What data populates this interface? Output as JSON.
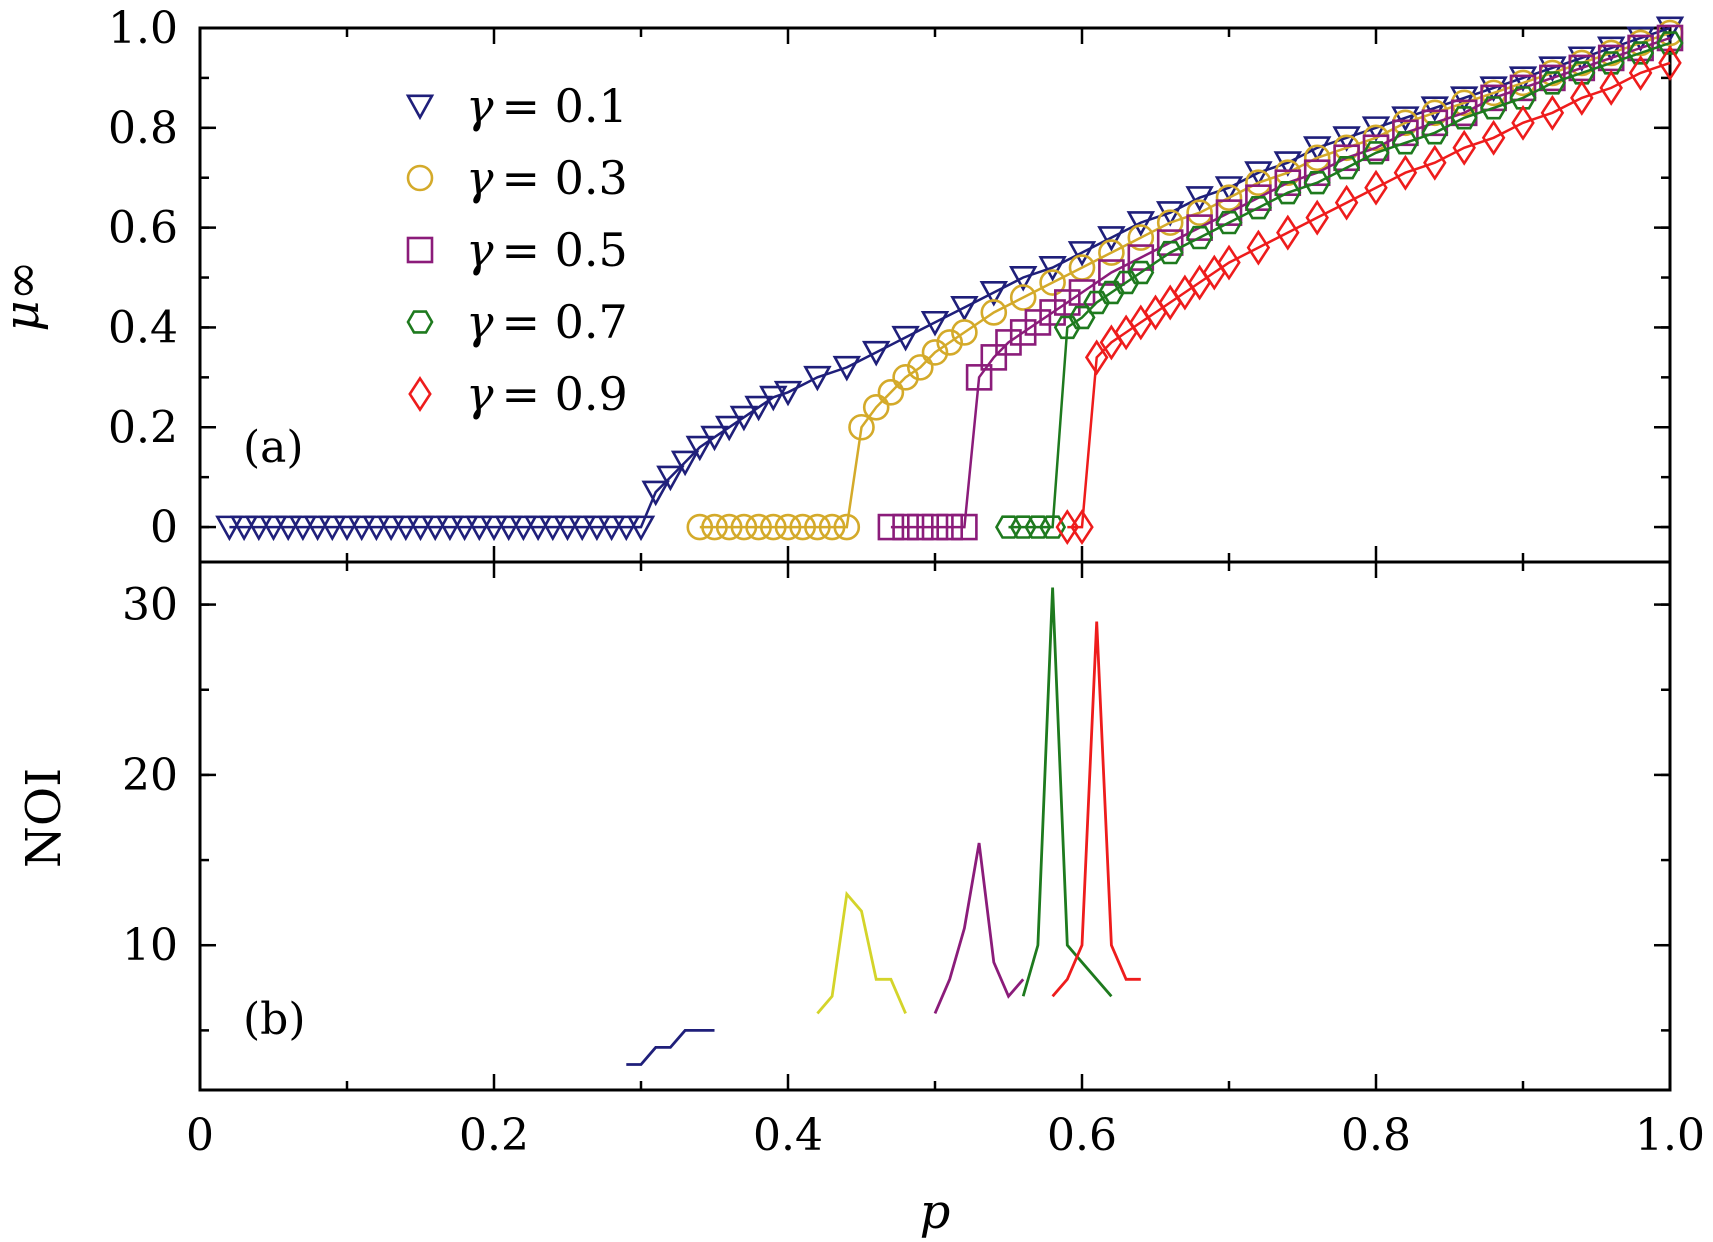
{
  "chart_data": [
    {
      "type": "line",
      "panel_label": "(a)",
      "xlabel": "p",
      "ylabel": "μ∞",
      "xlim": [
        0,
        1.0
      ],
      "ylim": [
        -0.07,
        1.0
      ],
      "x_ticks": [
        "0",
        "0.2",
        "0.4",
        "0.6",
        "0.8",
        "1.0"
      ],
      "y_ticks": [
        "0",
        "0.2",
        "0.4",
        "0.6",
        "0.8",
        "1.0"
      ],
      "legend_position": "top-left",
      "series": [
        {
          "name": "γ = 0.1",
          "marker": "triangle-down",
          "color": "#1f1f7a",
          "x": [
            0.02,
            0.03,
            0.04,
            0.05,
            0.06,
            0.07,
            0.08,
            0.09,
            0.1,
            0.11,
            0.12,
            0.13,
            0.14,
            0.15,
            0.16,
            0.17,
            0.18,
            0.19,
            0.2,
            0.21,
            0.22,
            0.23,
            0.24,
            0.25,
            0.26,
            0.27,
            0.28,
            0.29,
            0.3,
            0.31,
            0.32,
            0.33,
            0.34,
            0.35,
            0.36,
            0.37,
            0.38,
            0.39,
            0.4,
            0.42,
            0.44,
            0.46,
            0.48,
            0.5,
            0.52,
            0.54,
            0.56,
            0.58,
            0.6,
            0.62,
            0.64,
            0.66,
            0.68,
            0.7,
            0.72,
            0.74,
            0.76,
            0.78,
            0.8,
            0.82,
            0.84,
            0.86,
            0.88,
            0.9,
            0.92,
            0.94,
            0.96,
            0.98,
            1.0
          ],
          "y": [
            0,
            0,
            0,
            0,
            0,
            0,
            0,
            0,
            0,
            0,
            0,
            0,
            0,
            0,
            0,
            0,
            0,
            0,
            0,
            0,
            0,
            0,
            0,
            0,
            0,
            0,
            0,
            0,
            0,
            0.07,
            0.1,
            0.13,
            0.16,
            0.18,
            0.2,
            0.22,
            0.24,
            0.26,
            0.27,
            0.3,
            0.32,
            0.35,
            0.38,
            0.41,
            0.44,
            0.47,
            0.5,
            0.52,
            0.55,
            0.58,
            0.61,
            0.63,
            0.66,
            0.68,
            0.71,
            0.73,
            0.76,
            0.78,
            0.8,
            0.82,
            0.84,
            0.86,
            0.88,
            0.9,
            0.92,
            0.94,
            0.96,
            0.98,
            1.0
          ]
        },
        {
          "name": "γ = 0.3",
          "marker": "circle",
          "color": "#d4aa2a",
          "x": [
            0.34,
            0.35,
            0.36,
            0.37,
            0.38,
            0.39,
            0.4,
            0.41,
            0.42,
            0.43,
            0.44,
            0.45,
            0.46,
            0.47,
            0.48,
            0.49,
            0.5,
            0.51,
            0.52,
            0.54,
            0.56,
            0.58,
            0.6,
            0.62,
            0.64,
            0.66,
            0.68,
            0.7,
            0.72,
            0.74,
            0.76,
            0.78,
            0.8,
            0.82,
            0.84,
            0.86,
            0.88,
            0.9,
            0.92,
            0.94,
            0.96,
            0.98,
            1.0
          ],
          "y": [
            0,
            0,
            0,
            0,
            0,
            0,
            0,
            0,
            0,
            0,
            0,
            0.2,
            0.24,
            0.27,
            0.3,
            0.32,
            0.35,
            0.37,
            0.39,
            0.43,
            0.46,
            0.49,
            0.52,
            0.55,
            0.58,
            0.61,
            0.63,
            0.66,
            0.69,
            0.71,
            0.74,
            0.76,
            0.78,
            0.81,
            0.83,
            0.85,
            0.87,
            0.89,
            0.91,
            0.93,
            0.95,
            0.97,
            0.99
          ]
        },
        {
          "name": "γ = 0.5",
          "marker": "square",
          "color": "#8b1c7a",
          "x": [
            0.47,
            0.48,
            0.49,
            0.5,
            0.51,
            0.52,
            0.53,
            0.54,
            0.55,
            0.56,
            0.57,
            0.58,
            0.59,
            0.6,
            0.62,
            0.64,
            0.66,
            0.68,
            0.7,
            0.72,
            0.74,
            0.76,
            0.78,
            0.8,
            0.82,
            0.84,
            0.86,
            0.88,
            0.9,
            0.92,
            0.94,
            0.96,
            0.98,
            1.0
          ],
          "y": [
            0,
            0,
            0,
            0,
            0,
            0,
            0.3,
            0.34,
            0.37,
            0.39,
            0.41,
            0.43,
            0.45,
            0.47,
            0.51,
            0.54,
            0.57,
            0.6,
            0.63,
            0.66,
            0.69,
            0.71,
            0.74,
            0.76,
            0.79,
            0.81,
            0.83,
            0.86,
            0.88,
            0.9,
            0.92,
            0.94,
            0.96,
            0.98
          ]
        },
        {
          "name": "γ = 0.7",
          "marker": "hexagon",
          "color": "#1e7a1e",
          "x": [
            0.55,
            0.56,
            0.57,
            0.58,
            0.59,
            0.6,
            0.61,
            0.62,
            0.63,
            0.64,
            0.66,
            0.68,
            0.7,
            0.72,
            0.74,
            0.76,
            0.78,
            0.8,
            0.82,
            0.84,
            0.86,
            0.88,
            0.9,
            0.92,
            0.94,
            0.96,
            0.98,
            1.0
          ],
          "y": [
            0,
            0,
            0,
            0,
            0.4,
            0.42,
            0.45,
            0.47,
            0.49,
            0.51,
            0.55,
            0.58,
            0.61,
            0.64,
            0.67,
            0.69,
            0.72,
            0.75,
            0.77,
            0.79,
            0.82,
            0.84,
            0.86,
            0.89,
            0.91,
            0.93,
            0.95,
            0.97
          ]
        },
        {
          "name": "γ = 0.9",
          "marker": "diamond",
          "color": "#ee1c1c",
          "x": [
            0.59,
            0.6,
            0.61,
            0.62,
            0.63,
            0.64,
            0.65,
            0.66,
            0.67,
            0.68,
            0.69,
            0.7,
            0.72,
            0.74,
            0.76,
            0.78,
            0.8,
            0.82,
            0.84,
            0.86,
            0.88,
            0.9,
            0.92,
            0.94,
            0.96,
            0.98,
            1.0
          ],
          "y": [
            0,
            0,
            0.34,
            0.37,
            0.39,
            0.41,
            0.43,
            0.45,
            0.47,
            0.49,
            0.51,
            0.53,
            0.56,
            0.59,
            0.62,
            0.65,
            0.68,
            0.71,
            0.73,
            0.76,
            0.78,
            0.81,
            0.83,
            0.86,
            0.88,
            0.91,
            0.93
          ]
        }
      ]
    },
    {
      "type": "line",
      "panel_label": "(b)",
      "xlabel": "p",
      "ylabel": "NOI",
      "xlim": [
        0,
        1.0
      ],
      "ylim": [
        1.5,
        32.5
      ],
      "x_ticks": [
        "0",
        "0.2",
        "0.4",
        "0.6",
        "0.8",
        "1.0"
      ],
      "y_ticks": [
        "10",
        "20",
        "30"
      ],
      "series": [
        {
          "name": "γ = 0.1",
          "color": "#1f1f7a",
          "x": [
            0.29,
            0.3,
            0.31,
            0.32,
            0.33,
            0.34,
            0.35
          ],
          "y": [
            3,
            3,
            4,
            4,
            5,
            5,
            5
          ]
        },
        {
          "name": "γ = 0.3",
          "color": "#d4d42a",
          "x": [
            0.42,
            0.43,
            0.44,
            0.45,
            0.46,
            0.47,
            0.48
          ],
          "y": [
            6,
            7,
            13,
            12,
            8,
            8,
            6
          ]
        },
        {
          "name": "γ = 0.5",
          "color": "#8b1c7a",
          "x": [
            0.5,
            0.51,
            0.52,
            0.53,
            0.54,
            0.55,
            0.56
          ],
          "y": [
            6,
            8,
            11,
            16,
            9,
            7,
            8
          ]
        },
        {
          "name": "γ = 0.7",
          "color": "#1e7a1e",
          "x": [
            0.56,
            0.57,
            0.58,
            0.59,
            0.6,
            0.61,
            0.62
          ],
          "y": [
            7,
            10,
            31,
            10,
            9,
            8,
            7
          ]
        },
        {
          "name": "γ = 0.9",
          "color": "#ee1c1c",
          "x": [
            0.58,
            0.59,
            0.6,
            0.61,
            0.62,
            0.63,
            0.64
          ],
          "y": [
            7,
            8,
            10,
            29,
            10,
            8,
            8
          ]
        }
      ]
    }
  ],
  "legend": [
    {
      "gamma": "γ",
      "eq": "= 0.1"
    },
    {
      "gamma": "γ",
      "eq": "= 0.3"
    },
    {
      "gamma": "γ",
      "eq": "= 0.5"
    },
    {
      "gamma": "γ",
      "eq": "= 0.7"
    },
    {
      "gamma": "γ",
      "eq": "= 0.9"
    }
  ]
}
